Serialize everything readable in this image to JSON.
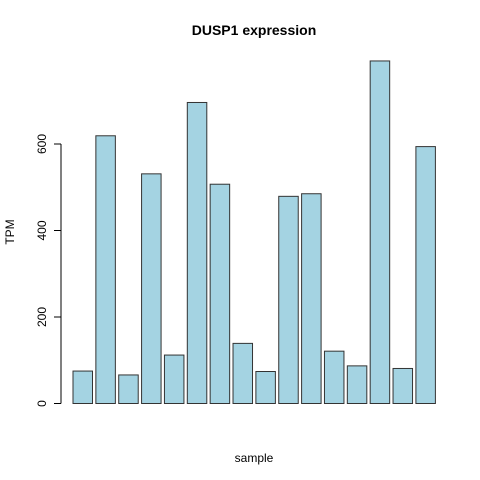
{
  "chart_data": {
    "type": "bar",
    "title": "DUSP1 expression",
    "xlabel": "sample",
    "ylabel": "TPM",
    "ylim": [
      0,
      800
    ],
    "yticks": [
      0,
      200,
      400,
      600
    ],
    "values": [
      75,
      619,
      66,
      531,
      112,
      696,
      507,
      139,
      74,
      479,
      485,
      121,
      87,
      792,
      81,
      594
    ],
    "bar_color": "#a4d3e2",
    "border_color": "#333333",
    "grid": false
  }
}
